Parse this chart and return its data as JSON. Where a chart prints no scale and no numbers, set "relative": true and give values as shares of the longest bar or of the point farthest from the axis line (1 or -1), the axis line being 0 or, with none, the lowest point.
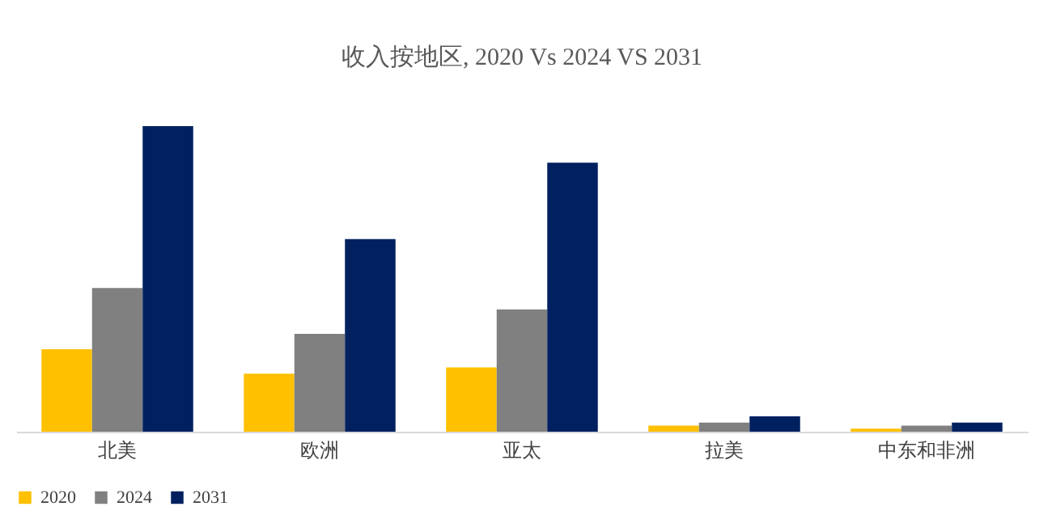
{
  "chart_data": {
    "type": "bar",
    "title": "收入按地区, 2020 Vs 2024 VS 2031",
    "relative": true,
    "categories": [
      "北美",
      "欧洲",
      "亚太",
      "拉美",
      "中东和非洲"
    ],
    "series": [
      {
        "name": "2020",
        "color": "#ffc000",
        "values": [
          0.27,
          0.19,
          0.21,
          0.02,
          0.01
        ]
      },
      {
        "name": "2024",
        "color": "#808080",
        "values": [
          0.47,
          0.32,
          0.4,
          0.03,
          0.02
        ]
      },
      {
        "name": "2031",
        "color": "#002060",
        "values": [
          1,
          0.63,
          0.88,
          0.05,
          0.03
        ]
      }
    ],
    "legend": "bottom"
  }
}
